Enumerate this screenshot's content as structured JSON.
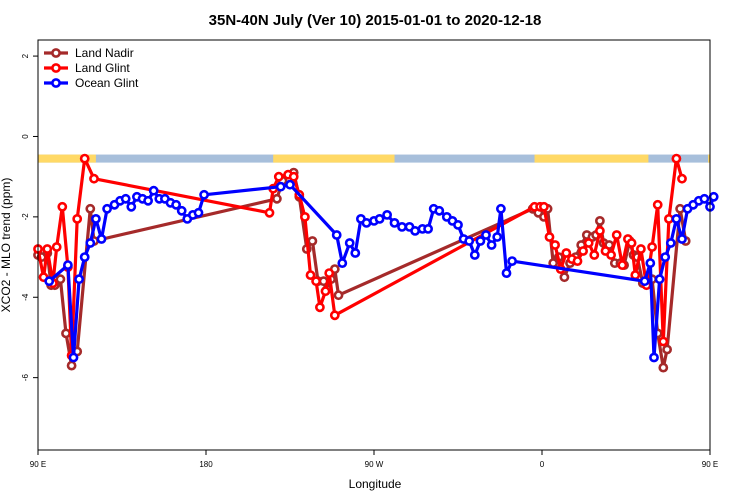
{
  "chart_data": {
    "type": "line",
    "title": "35N-40N July (Ver 10)   2015-01-01 to 2020-12-18",
    "xlabel": "Longitude",
    "ylabel": "XCO2 - MLO trend (ppm)",
    "xlim": [
      90,
      450
    ],
    "ylim": [
      -7.8,
      2.4
    ],
    "x_ticks": [
      {
        "value": 90,
        "label": "90 E"
      },
      {
        "value": 180,
        "label": "180"
      },
      {
        "value": 270,
        "label": "90 W"
      },
      {
        "value": 360,
        "label": "0"
      },
      {
        "value": 450,
        "label": "90 E"
      },
      {
        "value": 540,
        "label": "180"
      }
    ],
    "y_ticks": [
      {
        "value": 2,
        "label": "2"
      },
      {
        "value": 0,
        "label": "0"
      },
      {
        "value": -2,
        "label": "-2"
      },
      {
        "value": -4,
        "label": "-4"
      },
      {
        "value": -6,
        "label": "-6"
      }
    ],
    "land_mask": {
      "y_range": [
        -0.65,
        -0.45
      ],
      "land_color": "#FFD966",
      "ocean_color": "#A7BFDB",
      "land_segments": [
        [
          90,
          121
        ],
        [
          216,
          281
        ],
        [
          356,
          417
        ],
        [
          449,
          453
        ]
      ]
    },
    "legend": {
      "position": "top-left"
    },
    "series": [
      {
        "name": "Land Nadir",
        "color": "#A52A2A",
        "points": [
          [
            90,
            -2.95
          ],
          [
            92,
            -3
          ],
          [
            95,
            -2.9
          ],
          [
            97,
            -3.7
          ],
          [
            99,
            -3.7
          ],
          [
            102,
            -3.55
          ],
          [
            105,
            -4.9
          ],
          [
            108,
            -5.7
          ],
          [
            111,
            -5.35
          ],
          [
            118,
            -1.8
          ],
          [
            120,
            -2.6
          ],
          [
            218,
            -1.55
          ],
          [
            221,
            -1.1
          ],
          [
            227,
            -0.9
          ],
          [
            230,
            -1.5
          ],
          [
            234,
            -2.8
          ],
          [
            237,
            -2.6
          ],
          [
            240,
            -3.6
          ],
          [
            243,
            -3.6
          ],
          [
            245,
            -3.8
          ],
          [
            247,
            -3.55
          ],
          [
            249,
            -3.3
          ],
          [
            251,
            -3.95
          ],
          [
            355,
            -1.8
          ],
          [
            358,
            -1.9
          ],
          [
            361,
            -2
          ],
          [
            363,
            -1.8
          ],
          [
            366,
            -3.15
          ],
          [
            369,
            -3
          ],
          [
            372,
            -3.5
          ],
          [
            375,
            -3.15
          ],
          [
            378,
            -3
          ],
          [
            381,
            -2.7
          ],
          [
            384,
            -2.45
          ],
          [
            387,
            -2.5
          ],
          [
            389,
            -2.45
          ],
          [
            391,
            -2.1
          ],
          [
            393,
            -2.65
          ],
          [
            396,
            -2.7
          ],
          [
            399,
            -3.15
          ],
          [
            402,
            -3.15
          ],
          [
            404,
            -3.2
          ],
          [
            407,
            -2.6
          ],
          [
            409,
            -2.95
          ],
          [
            411,
            -3
          ],
          [
            414,
            -3.65
          ],
          [
            416,
            -3.6
          ],
          [
            419,
            -3.55
          ],
          [
            422,
            -4.9
          ],
          [
            425,
            -5.75
          ],
          [
            427,
            -5.3
          ],
          [
            434,
            -1.8
          ],
          [
            437,
            -2.6
          ]
        ]
      },
      {
        "name": "Land Glint",
        "color": "#FF0000",
        "points": [
          [
            90,
            -2.8
          ],
          [
            93,
            -3.5
          ],
          [
            95,
            -2.8
          ],
          [
            98,
            -3.65
          ],
          [
            100,
            -2.75
          ],
          [
            103,
            -1.75
          ],
          [
            106,
            -3.25
          ],
          [
            108,
            -5.45
          ],
          [
            111,
            -2.05
          ],
          [
            115,
            -0.55
          ],
          [
            120,
            -1.05
          ],
          [
            214,
            -1.9
          ],
          [
            216,
            -1.3
          ],
          [
            219,
            -1
          ],
          [
            224,
            -0.95
          ],
          [
            227,
            -1
          ],
          [
            230,
            -1.45
          ],
          [
            233,
            -2
          ],
          [
            236,
            -3.45
          ],
          [
            239,
            -3.6
          ],
          [
            241,
            -4.25
          ],
          [
            244,
            -3.85
          ],
          [
            246,
            -3.4
          ],
          [
            249,
            -4.45
          ],
          [
            356,
            -1.75
          ],
          [
            359,
            -1.75
          ],
          [
            361,
            -1.75
          ],
          [
            364,
            -2.5
          ],
          [
            367,
            -2.7
          ],
          [
            370,
            -3.3
          ],
          [
            373,
            -2.9
          ],
          [
            376,
            -3.05
          ],
          [
            379,
            -3.1
          ],
          [
            382,
            -2.85
          ],
          [
            385,
            -2.65
          ],
          [
            388,
            -2.95
          ],
          [
            391,
            -2.35
          ],
          [
            394,
            -2.85
          ],
          [
            397,
            -2.95
          ],
          [
            400,
            -2.45
          ],
          [
            403,
            -3.2
          ],
          [
            406,
            -2.55
          ],
          [
            408,
            -2.65
          ],
          [
            410,
            -3.45
          ],
          [
            413,
            -2.8
          ],
          [
            416,
            -3.7
          ],
          [
            419,
            -2.75
          ],
          [
            422,
            -1.7
          ],
          [
            425,
            -5.1
          ],
          [
            428,
            -2.05
          ],
          [
            432,
            -0.55
          ],
          [
            435,
            -1.05
          ]
        ]
      },
      {
        "name": "Ocean Glint",
        "color": "#0000FF",
        "points": [
          [
            96,
            -3.6
          ],
          [
            106,
            -3.2
          ],
          [
            109,
            -5.5
          ],
          [
            112,
            -3.55
          ],
          [
            115,
            -3
          ],
          [
            118,
            -2.65
          ],
          [
            121,
            -2.05
          ],
          [
            124,
            -2.55
          ],
          [
            127,
            -1.8
          ],
          [
            131,
            -1.7
          ],
          [
            134,
            -1.6
          ],
          [
            137,
            -1.55
          ],
          [
            140,
            -1.75
          ],
          [
            143,
            -1.5
          ],
          [
            146,
            -1.55
          ],
          [
            149,
            -1.6
          ],
          [
            152,
            -1.35
          ],
          [
            155,
            -1.55
          ],
          [
            158,
            -1.55
          ],
          [
            161,
            -1.65
          ],
          [
            164,
            -1.7
          ],
          [
            167,
            -1.85
          ],
          [
            170,
            -2.05
          ],
          [
            173,
            -1.95
          ],
          [
            176,
            -1.9
          ],
          [
            179,
            -1.45
          ],
          [
            220,
            -1.25
          ],
          [
            225,
            -1.2
          ],
          [
            250,
            -2.45
          ],
          [
            253,
            -3.15
          ],
          [
            257,
            -2.65
          ],
          [
            260,
            -2.9
          ],
          [
            263,
            -2.05
          ],
          [
            266,
            -2.15
          ],
          [
            270,
            -2.1
          ],
          [
            273,
            -2.05
          ],
          [
            277,
            -1.95
          ],
          [
            281,
            -2.15
          ],
          [
            285,
            -2.25
          ],
          [
            289,
            -2.25
          ],
          [
            292,
            -2.35
          ],
          [
            296,
            -2.3
          ],
          [
            299,
            -2.3
          ],
          [
            302,
            -1.8
          ],
          [
            305,
            -1.85
          ],
          [
            309,
            -2
          ],
          [
            312,
            -2.1
          ],
          [
            315,
            -2.2
          ],
          [
            318,
            -2.55
          ],
          [
            321,
            -2.6
          ],
          [
            324,
            -2.95
          ],
          [
            327,
            -2.6
          ],
          [
            330,
            -2.45
          ],
          [
            333,
            -2.7
          ],
          [
            336,
            -2.5
          ],
          [
            338,
            -1.8
          ],
          [
            341,
            -3.4
          ],
          [
            344,
            -3.1
          ],
          [
            415,
            -3.6
          ],
          [
            418,
            -3.15
          ],
          [
            420,
            -5.5
          ],
          [
            423,
            -3.55
          ],
          [
            426,
            -3
          ],
          [
            429,
            -2.65
          ],
          [
            432,
            -2.05
          ],
          [
            435,
            -2.55
          ],
          [
            438,
            -1.8
          ],
          [
            441,
            -1.7
          ],
          [
            444,
            -1.6
          ],
          [
            447,
            -1.55
          ],
          [
            450,
            -1.75
          ],
          [
            452,
            -1.5
          ]
        ]
      }
    ]
  }
}
